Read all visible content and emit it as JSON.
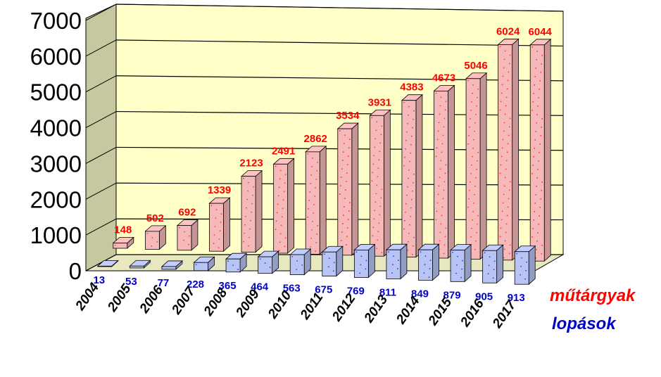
{
  "chart_data": {
    "type": "bar",
    "title": "",
    "xlabel": "",
    "ylabel": "",
    "ylim": [
      0,
      7000
    ],
    "yticks": [
      "0",
      "1000",
      "2000",
      "3000",
      "4000",
      "5000",
      "6000",
      "7000"
    ],
    "categories": [
      "2004",
      "2005",
      "2006",
      "2007",
      "2008",
      "2009",
      "2010",
      "2011",
      "2012",
      "2013",
      "2014",
      "2015",
      "2016",
      "2017"
    ],
    "grid": true,
    "series": [
      {
        "name": "lopások",
        "color": "#0000cc",
        "fill": "#b8c4f4",
        "values": [
          13,
          53,
          77,
          228,
          365,
          464,
          563,
          675,
          769,
          811,
          849,
          879,
          905,
          913
        ]
      },
      {
        "name": "műtárgyak",
        "color": "#ff0000",
        "fill": "#f6b9b9",
        "values": [
          148,
          502,
          692,
          1339,
          2123,
          2491,
          2862,
          3534,
          3931,
          4383,
          4673,
          5046,
          6024,
          6044
        ]
      }
    ],
    "value_labels": {
      "lopások": [
        "13",
        "53",
        "77",
        "228",
        "365",
        "464",
        "563",
        "675",
        "769",
        "811",
        "849",
        "879",
        "905",
        "913"
      ],
      "műtárgyak": [
        "148",
        "502",
        "692",
        "1339",
        "2123",
        "2491",
        "2862",
        "3534",
        "3931",
        "4383",
        "4673",
        "5046",
        "6024",
        "6044"
      ]
    },
    "legend_position": "bottom-right",
    "wall_color": "#ffffc8",
    "floor_color": "#e8e8c0"
  }
}
